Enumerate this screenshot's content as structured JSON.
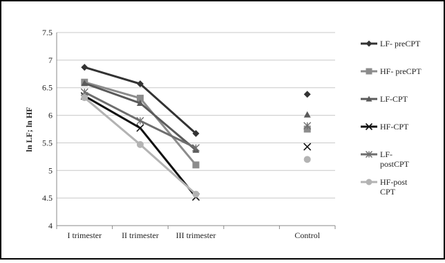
{
  "chart_data": {
    "type": "line",
    "title": "",
    "ylabel": "ln LF; ln HF",
    "xlabel": "",
    "categories": [
      "I trimester",
      "II trimester",
      "III trimester",
      "",
      "Control"
    ],
    "ylim": [
      4,
      7.5
    ],
    "yticks": [
      4,
      4.5,
      5,
      5.5,
      6,
      6.5,
      7,
      7.5
    ],
    "grid": true,
    "legend_position": "right",
    "series": [
      {
        "name": "LF- preCPT",
        "color": "#333333",
        "marker": "diamond",
        "values": [
          6.87,
          6.57,
          5.67,
          null,
          6.38
        ]
      },
      {
        "name": "HF- preCPT",
        "color": "#8c8c8c",
        "marker": "square",
        "values": [
          6.6,
          6.31,
          5.1,
          null,
          5.75
        ]
      },
      {
        "name": "LF-CPT",
        "color": "#5a5a5a",
        "marker": "triangle",
        "values": [
          6.58,
          6.22,
          5.37,
          null,
          6.01
        ]
      },
      {
        "name": "HF-CPT",
        "color": "#111111",
        "marker": "x",
        "values": [
          6.35,
          5.77,
          4.52,
          null,
          5.43
        ]
      },
      {
        "name": "LF-\npostCPT",
        "color": "#6e6e6e",
        "marker": "asterisk",
        "values": [
          6.42,
          5.9,
          5.41,
          null,
          5.81
        ]
      },
      {
        "name": "HF-post\nCPT",
        "color": "#b3b3b3",
        "marker": "circle",
        "values": [
          6.32,
          5.47,
          4.57,
          null,
          5.2
        ]
      }
    ]
  }
}
